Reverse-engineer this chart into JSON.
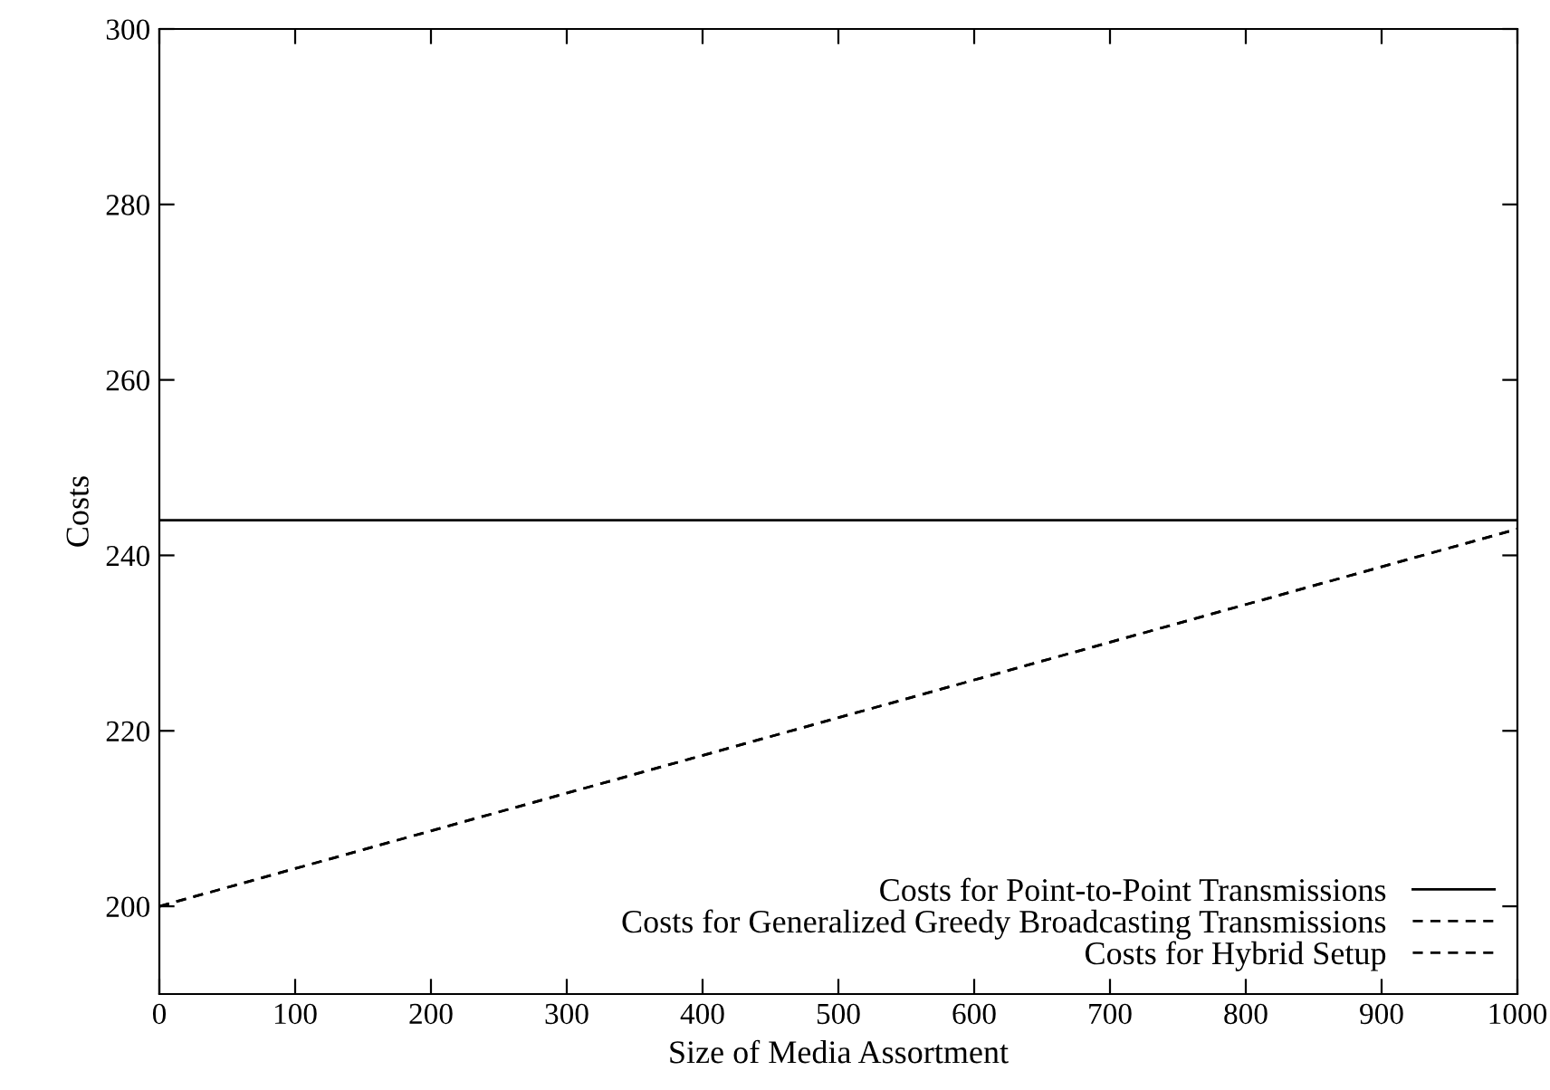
{
  "chart_data": {
    "type": "line",
    "xlabel": "Size of Media Assortment",
    "ylabel": "Costs",
    "x": [
      0,
      1000
    ],
    "series": [
      {
        "name": "Costs for Point-to-Point Transmissions",
        "color": "#000000",
        "values": [
          244,
          244
        ],
        "line_style": "solid"
      },
      {
        "name": "Costs for Generalized Greedy Broadcasting Transmissions",
        "color": "#000000",
        "values": [
          200,
          243
        ],
        "line_style": "dashed"
      },
      {
        "name": "Costs for Hybrid Setup",
        "color": "#000000",
        "values": [
          200,
          243
        ],
        "line_style": "dashed"
      }
    ],
    "xlim": [
      0,
      1000
    ],
    "ylim": [
      190,
      300
    ],
    "xticks": [
      0,
      100,
      200,
      300,
      400,
      500,
      600,
      700,
      800,
      900,
      1000
    ],
    "yticks": [
      200,
      220,
      240,
      260,
      280,
      300
    ],
    "grid": false,
    "legend": "bottom right",
    "marker": "none"
  }
}
